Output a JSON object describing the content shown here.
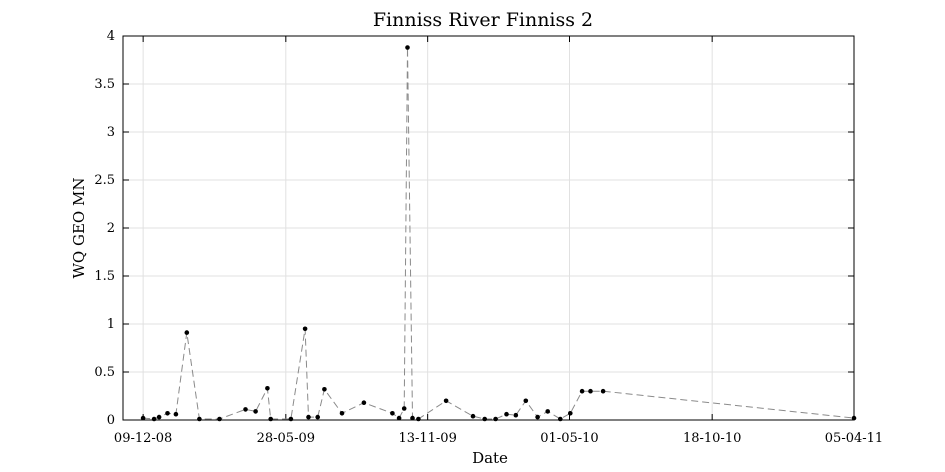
{
  "chart_data": {
    "type": "line",
    "title": "Finniss River Finniss 2",
    "xlabel": "Date",
    "ylabel": "WQ GEO MN",
    "x_axis": "date",
    "xlim": [
      "2008-11-15",
      "2011-04-05"
    ],
    "ylim": [
      0,
      4
    ],
    "x_ticks": [
      {
        "date": "2008-12-09",
        "label": "09-12-08"
      },
      {
        "date": "2009-05-28",
        "label": "28-05-09"
      },
      {
        "date": "2009-11-13",
        "label": "13-11-09"
      },
      {
        "date": "2010-05-01",
        "label": "01-05-10"
      },
      {
        "date": "2010-10-18",
        "label": "18-10-10"
      },
      {
        "date": "2011-04-05",
        "label": "05-04-11"
      }
    ],
    "y_ticks": [
      0,
      0.5,
      1,
      1.5,
      2,
      2.5,
      3,
      3.5,
      4
    ],
    "y_tick_labels": [
      "0",
      "0.5",
      "1",
      "1.5",
      "2",
      "2.5",
      "3",
      "3.5",
      "4"
    ],
    "grid": true,
    "series": [
      {
        "color": "#8a8a8a",
        "marker_color": "#000000",
        "line_style": "dashed",
        "x": [
          "2008-12-09",
          "2008-12-22",
          "2008-12-28",
          "2009-01-07",
          "2009-01-17",
          "2009-01-30",
          "2009-02-14",
          "2009-03-10",
          "2009-04-10",
          "2009-04-22",
          "2009-05-06",
          "2009-05-10",
          "2009-06-03",
          "2009-06-20",
          "2009-06-24",
          "2009-07-05",
          "2009-07-13",
          "2009-08-03",
          "2009-08-29",
          "2009-10-02",
          "2009-10-10",
          "2009-10-16",
          "2009-10-20",
          "2009-10-26",
          "2009-11-02",
          "2009-12-05",
          "2010-01-06",
          "2010-01-20",
          "2010-02-02",
          "2010-02-15",
          "2010-02-26",
          "2010-03-10",
          "2010-03-24",
          "2010-04-05",
          "2010-04-20",
          "2010-05-02",
          "2010-05-16",
          "2010-05-26",
          "2010-06-10",
          "2011-04-05"
        ],
        "y": [
          0.02,
          0.01,
          0.03,
          0.07,
          0.06,
          0.91,
          0.01,
          0.01,
          0.11,
          0.09,
          0.33,
          0.01,
          0.01,
          0.95,
          0.03,
          0.03,
          0.32,
          0.07,
          0.18,
          0.07,
          0.02,
          0.12,
          3.88,
          0.02,
          0.01,
          0.2,
          0.04,
          0.01,
          0.01,
          0.06,
          0.05,
          0.2,
          0.03,
          0.09,
          0.01,
          0.07,
          0.3,
          0.3,
          0.3,
          0.02
        ]
      }
    ]
  }
}
